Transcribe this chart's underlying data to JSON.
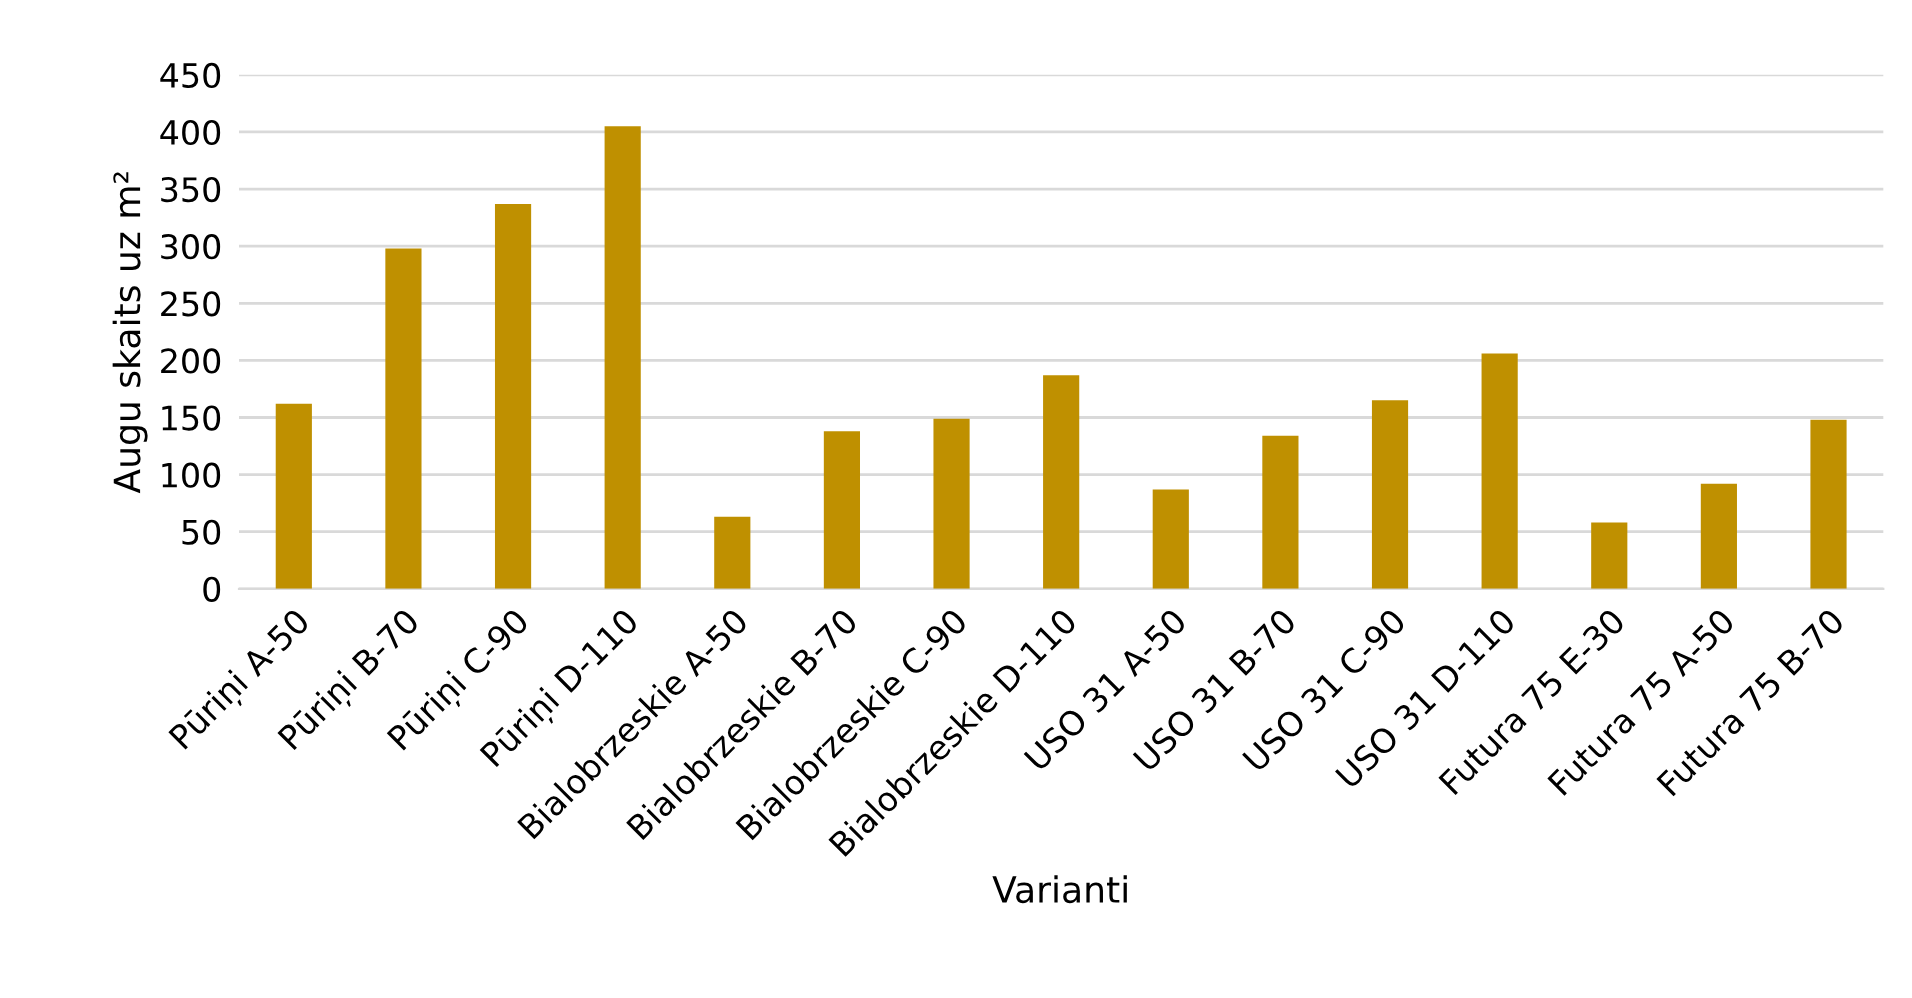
{
  "chart_data": {
    "type": "bar",
    "xlabel": "Varianti",
    "ylabel": "Augu skaits uz m²",
    "categories": [
      "Pūriņi A-50",
      "Pūriņi B-70",
      "Pūriņi C-90",
      "Pūriņi D-110",
      "Bialobrzeskie A-50",
      "Bialobrzeskie B-70",
      "Bialobrzeskie C-90",
      "Bialobrzeskie D-110",
      "USO 31 A-50",
      "USO 31 B-70",
      "USO 31 C-90",
      "USO 31 D-110",
      "Futura 75 E-30",
      "Futura 75 A-50",
      "Futura 75 B-70"
    ],
    "values": [
      162,
      298,
      337,
      405,
      63,
      138,
      149,
      187,
      87,
      134,
      165,
      206,
      58,
      92,
      148
    ],
    "color": "#bf9000",
    "ylim": [
      0,
      450
    ],
    "yticks": [
      0,
      50,
      100,
      150,
      200,
      250,
      300,
      350,
      400,
      450
    ],
    "grid": "y",
    "legend": false
  }
}
